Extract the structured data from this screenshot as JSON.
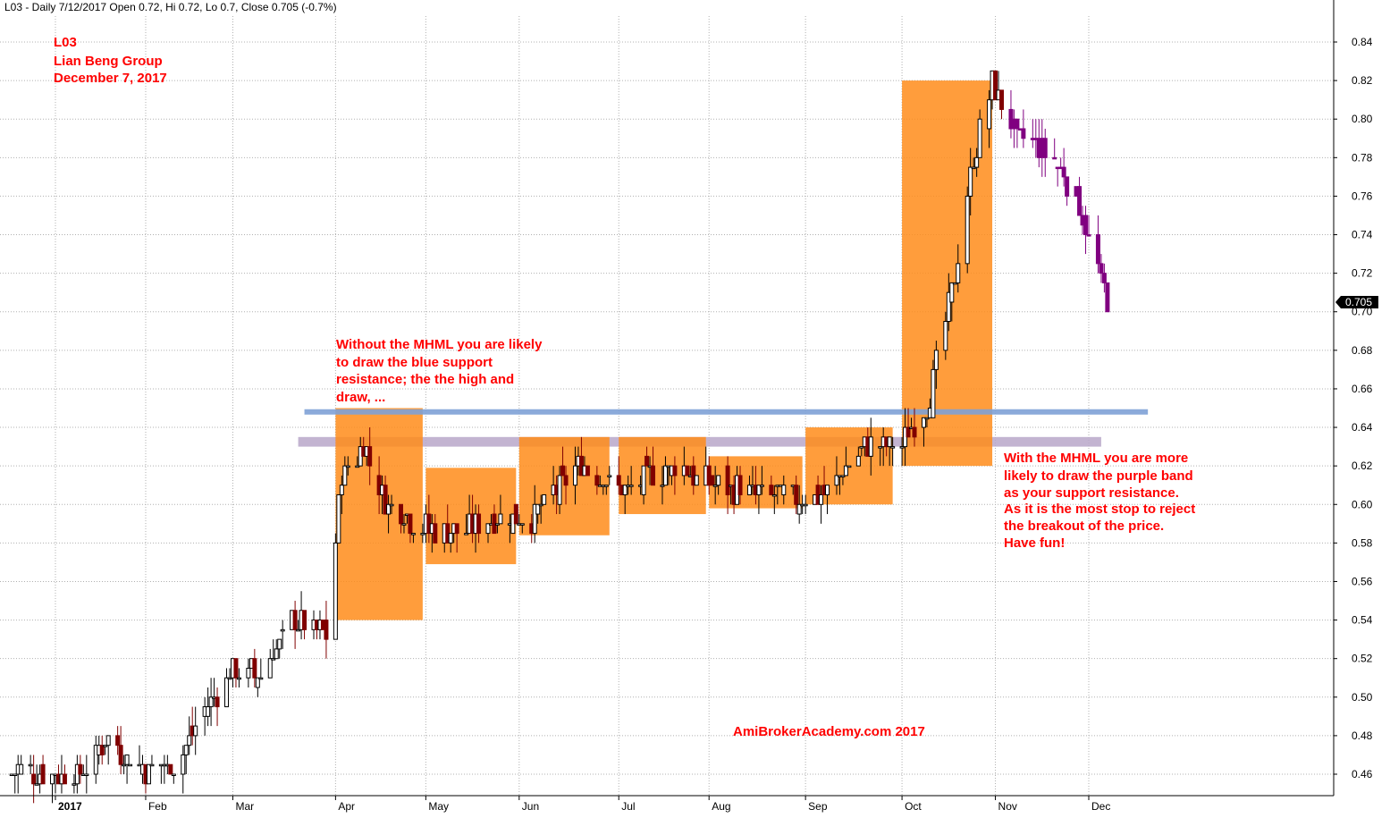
{
  "header": "L03 - Daily 7/12/2017 Open 0.72, Hi 0.72, Lo 0.7, Close 0.705 (-0.7%)",
  "title_block": [
    "L03",
    "Lian Beng Group",
    "December 7, 2017"
  ],
  "annotation_left": [
    "Without the MHML you are likely",
    "to draw the blue support",
    "resistance; the the high and",
    "draw, ..."
  ],
  "annotation_right": [
    "With the MHML you are more",
    "likely to draw the purple band",
    "as your support resistance.",
    "As it is the most stop to reject",
    "the breakout of the price.",
    "Have fun!"
  ],
  "watermark": "AmiBrokerAcademy.com  2017",
  "last_price_label": "0.705",
  "colors": {
    "up": "#000000",
    "down": "#800000",
    "recent": "#800080",
    "box": "#ff8c1a",
    "blue_line": "#7fa1d6",
    "purple_band": "#b9a7c9",
    "annotation": "#ff0000",
    "grid": "#b0b0b0"
  },
  "chart_data": {
    "type": "candlestick",
    "ylim": [
      0.45,
      0.85
    ],
    "y_ticks": [
      0.46,
      0.48,
      0.5,
      0.52,
      0.54,
      0.56,
      0.58,
      0.6,
      0.62,
      0.64,
      0.66,
      0.68,
      0.7,
      0.72,
      0.74,
      0.76,
      0.78,
      0.8,
      0.82,
      0.84
    ],
    "x_ticks": [
      {
        "label": "2017",
        "date": "2017-01-03",
        "bold": true
      },
      {
        "label": "Feb",
        "date": "2017-02-01"
      },
      {
        "label": "Mar",
        "date": "2017-03-01"
      },
      {
        "label": "Apr",
        "date": "2017-04-03"
      },
      {
        "label": "May",
        "date": "2017-05-02"
      },
      {
        "label": "Jun",
        "date": "2017-06-01"
      },
      {
        "label": "Jul",
        "date": "2017-07-03"
      },
      {
        "label": "Aug",
        "date": "2017-08-01"
      },
      {
        "label": "Sep",
        "date": "2017-09-01"
      },
      {
        "label": "Oct",
        "date": "2017-10-02"
      },
      {
        "label": "Nov",
        "date": "2017-11-01"
      },
      {
        "label": "Dec",
        "date": "2017-12-01"
      }
    ],
    "x_range": [
      "2016-12-19",
      "2017-12-30"
    ],
    "price_path": [
      {
        "date": "2016-12-20",
        "price": 0.462
      },
      {
        "date": "2017-01-10",
        "price": 0.46
      },
      {
        "date": "2017-01-20",
        "price": 0.478
      },
      {
        "date": "2017-02-01",
        "price": 0.462
      },
      {
        "date": "2017-02-10",
        "price": 0.465
      },
      {
        "date": "2017-02-20",
        "price": 0.492
      },
      {
        "date": "2017-02-28",
        "price": 0.512
      },
      {
        "date": "2017-03-10",
        "price": 0.512
      },
      {
        "date": "2017-03-20",
        "price": 0.54
      },
      {
        "date": "2017-03-31",
        "price": 0.533
      },
      {
        "date": "2017-04-05",
        "price": 0.615
      },
      {
        "date": "2017-04-12",
        "price": 0.63
      },
      {
        "date": "2017-04-20",
        "price": 0.6
      },
      {
        "date": "2017-04-28",
        "price": 0.59
      },
      {
        "date": "2017-05-10",
        "price": 0.585
      },
      {
        "date": "2017-05-25",
        "price": 0.595
      },
      {
        "date": "2017-06-05",
        "price": 0.592
      },
      {
        "date": "2017-06-20",
        "price": 0.62
      },
      {
        "date": "2017-07-05",
        "price": 0.608
      },
      {
        "date": "2017-07-20",
        "price": 0.62
      },
      {
        "date": "2017-08-01",
        "price": 0.612
      },
      {
        "date": "2017-08-15",
        "price": 0.606
      },
      {
        "date": "2017-09-05",
        "price": 0.604
      },
      {
        "date": "2017-09-20",
        "price": 0.63
      },
      {
        "date": "2017-10-02",
        "price": 0.632
      },
      {
        "date": "2017-10-10",
        "price": 0.65
      },
      {
        "date": "2017-10-18",
        "price": 0.71
      },
      {
        "date": "2017-10-25",
        "price": 0.78
      },
      {
        "date": "2017-10-31",
        "price": 0.818
      },
      {
        "date": "2017-11-08",
        "price": 0.79
      },
      {
        "date": "2017-11-20",
        "price": 0.78
      },
      {
        "date": "2017-11-27",
        "price": 0.76
      },
      {
        "date": "2017-12-07",
        "price": 0.705
      }
    ],
    "boxes": [
      {
        "start": "2017-04-03",
        "end": "2017-05-01",
        "low": 0.54,
        "high": 0.65
      },
      {
        "start": "2017-05-02",
        "end": "2017-05-31",
        "low": 0.569,
        "high": 0.619
      },
      {
        "start": "2017-06-01",
        "end": "2017-06-30",
        "low": 0.584,
        "high": 0.635
      },
      {
        "start": "2017-07-03",
        "end": "2017-07-31",
        "low": 0.595,
        "high": 0.635
      },
      {
        "start": "2017-08-01",
        "end": "2017-08-31",
        "low": 0.598,
        "high": 0.625
      },
      {
        "start": "2017-09-01",
        "end": "2017-09-29",
        "low": 0.6,
        "high": 0.64
      },
      {
        "start": "2017-10-02",
        "end": "2017-10-31",
        "low": 0.62,
        "high": 0.82
      }
    ],
    "blue_support_line": {
      "value": 0.648,
      "start": "2017-03-24",
      "end": "2017-12-20"
    },
    "purple_band": {
      "low": 0.63,
      "high": 0.635,
      "start": "2017-03-22",
      "end": "2017-12-05"
    },
    "last_close": 0.705
  }
}
